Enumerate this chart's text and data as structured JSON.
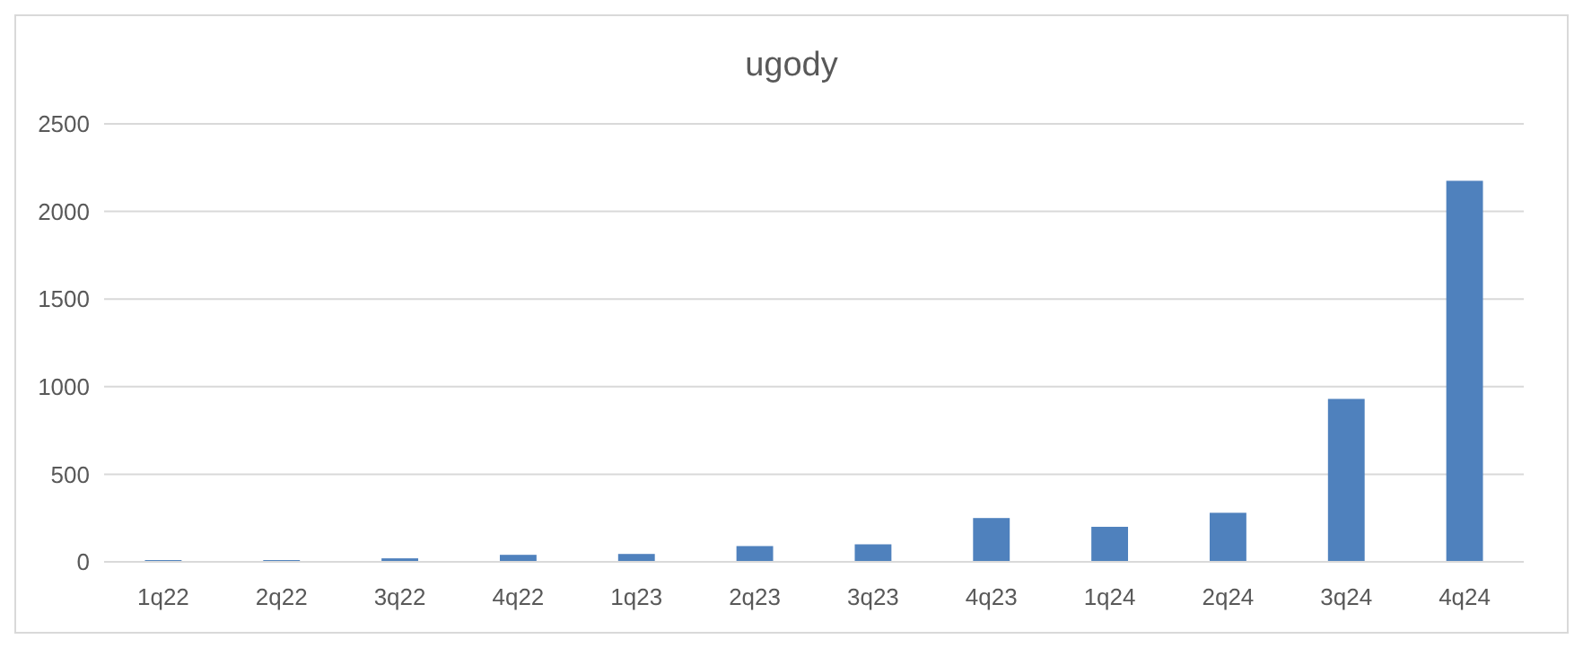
{
  "chart_data": {
    "type": "bar",
    "title": "ugody",
    "categories": [
      "1q22",
      "2q22",
      "3q22",
      "4q22",
      "1q23",
      "2q23",
      "3q23",
      "4q23",
      "1q24",
      "2q24",
      "3q24",
      "4q24"
    ],
    "values": [
      10,
      10,
      20,
      40,
      45,
      90,
      100,
      250,
      200,
      280,
      930,
      2175
    ],
    "color": "#4f81bd",
    "ylim": [
      0,
      2500
    ],
    "yticks": [
      0,
      500,
      1000,
      1500,
      2000,
      2500
    ],
    "grid": "y"
  }
}
